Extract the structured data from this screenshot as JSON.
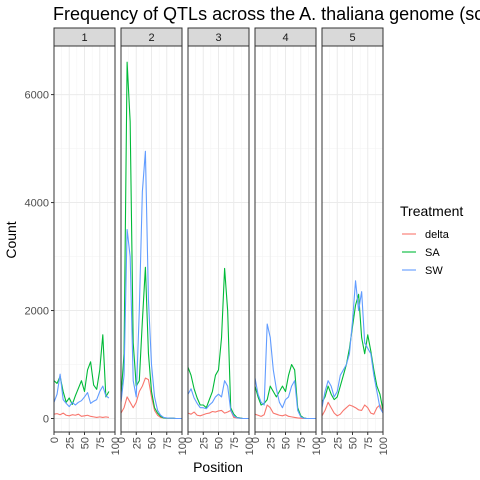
{
  "chart_data": {
    "type": "line",
    "title": "Frequency of QTLs across the A. thaliana genome (sc",
    "xlabel": "Position",
    "ylabel": "Count",
    "facets": [
      "1",
      "2",
      "3",
      "4",
      "5"
    ],
    "xlim": [
      0,
      100
    ],
    "ylim": [
      -250,
      6900
    ],
    "x_ticks": [
      0,
      25,
      50,
      75,
      100
    ],
    "y_ticks": [
      0,
      2000,
      4000,
      6000
    ],
    "y_tick_labels": [
      "0",
      "2000",
      "4000",
      "6000"
    ],
    "grid": true,
    "legend": {
      "title": "Treatment",
      "position": "right",
      "entries": [
        {
          "name": "delta",
          "color": "#F8766D"
        },
        {
          "name": "SA",
          "color": "#00BA38"
        },
        {
          "name": "SW",
          "color": "#619CFF"
        }
      ]
    },
    "panels": [
      {
        "facet": "1",
        "series": [
          {
            "name": "delta",
            "x": [
              0,
              5,
              10,
              15,
              20,
              25,
              30,
              35,
              40,
              45,
              50,
              55,
              60,
              65,
              70,
              75,
              80,
              85,
              90
            ],
            "y": [
              80,
              90,
              70,
              100,
              60,
              50,
              70,
              60,
              80,
              40,
              50,
              60,
              40,
              30,
              20,
              30,
              20,
              30,
              20
            ]
          },
          {
            "name": "SA",
            "x": [
              0,
              5,
              10,
              15,
              20,
              25,
              30,
              35,
              40,
              45,
              50,
              55,
              60,
              65,
              70,
              75,
              80,
              85,
              90
            ],
            "y": [
              700,
              650,
              780,
              500,
              300,
              380,
              260,
              420,
              560,
              700,
              500,
              900,
              1050,
              620,
              540,
              900,
              1550,
              400,
              500
            ]
          },
          {
            "name": "SW",
            "x": [
              0,
              5,
              10,
              15,
              20,
              25,
              30,
              35,
              40,
              45,
              50,
              55,
              60,
              65,
              70,
              75,
              80,
              85,
              90
            ],
            "y": [
              300,
              450,
              820,
              350,
              280,
              220,
              300,
              250,
              300,
              330,
              400,
              480,
              280,
              320,
              350,
              500,
              600,
              420,
              380
            ]
          }
        ]
      },
      {
        "facet": "2",
        "series": [
          {
            "name": "delta",
            "x": [
              0,
              5,
              10,
              15,
              20,
              25,
              30,
              35,
              40,
              45,
              50,
              55,
              60,
              65,
              70,
              75,
              80,
              85,
              90,
              95,
              100
            ],
            "y": [
              100,
              200,
              400,
              300,
              200,
              300,
              500,
              600,
              750,
              720,
              400,
              150,
              60,
              20,
              10,
              5,
              5,
              5,
              0,
              0,
              0
            ]
          },
          {
            "name": "SA",
            "x": [
              0,
              5,
              10,
              15,
              20,
              25,
              30,
              35,
              40,
              45,
              50,
              55,
              60,
              65,
              70,
              75,
              80,
              85,
              90,
              95,
              100
            ],
            "y": [
              400,
              1200,
              6600,
              5500,
              1400,
              600,
              700,
              1800,
              2800,
              1200,
              500,
              200,
              100,
              40,
              10,
              5,
              5,
              5,
              0,
              0,
              0
            ]
          },
          {
            "name": "SW",
            "x": [
              0,
              5,
              10,
              15,
              20,
              25,
              30,
              35,
              40,
              45,
              50,
              55,
              60,
              65,
              70,
              75,
              80,
              85,
              90,
              95,
              100
            ],
            "y": [
              300,
              800,
              3500,
              3000,
              700,
              400,
              2000,
              4200,
              4950,
              2200,
              1000,
              400,
              150,
              60,
              20,
              10,
              5,
              5,
              0,
              0,
              0
            ]
          }
        ]
      },
      {
        "facet": "3",
        "series": [
          {
            "name": "delta",
            "x": [
              0,
              5,
              10,
              15,
              20,
              25,
              30,
              35,
              40,
              45,
              50,
              55,
              60,
              65,
              70,
              75,
              80,
              85,
              90,
              95,
              100
            ],
            "y": [
              100,
              80,
              120,
              60,
              50,
              70,
              90,
              100,
              130,
              120,
              140,
              150,
              100,
              120,
              150,
              20,
              10,
              5,
              0,
              0,
              0
            ]
          },
          {
            "name": "SA",
            "x": [
              0,
              5,
              10,
              15,
              20,
              25,
              30,
              35,
              40,
              45,
              50,
              55,
              60,
              65,
              70,
              75,
              80,
              85,
              90,
              95,
              100
            ],
            "y": [
              950,
              800,
              550,
              380,
              250,
              250,
              200,
              350,
              500,
              800,
              900,
              1500,
              2780,
              2000,
              200,
              80,
              20,
              10,
              0,
              0,
              0
            ]
          },
          {
            "name": "SW",
            "x": [
              0,
              5,
              10,
              15,
              20,
              25,
              30,
              35,
              40,
              45,
              50,
              55,
              60,
              65,
              70,
              75,
              80,
              85,
              90,
              95,
              100
            ],
            "y": [
              450,
              550,
              380,
              280,
              200,
              200,
              180,
              250,
              300,
              400,
              450,
              400,
              700,
              600,
              150,
              50,
              15,
              5,
              0,
              0,
              0
            ]
          }
        ]
      },
      {
        "facet": "4",
        "series": [
          {
            "name": "delta",
            "x": [
              0,
              5,
              10,
              15,
              20,
              25,
              30,
              35,
              40,
              45,
              50,
              55,
              60,
              65,
              70,
              75,
              80,
              85,
              90,
              95,
              100
            ],
            "y": [
              80,
              60,
              40,
              70,
              250,
              200,
              100,
              80,
              60,
              50,
              70,
              40,
              30,
              20,
              10,
              5,
              0,
              0,
              0,
              0,
              0
            ]
          },
          {
            "name": "SA",
            "x": [
              0,
              5,
              10,
              15,
              20,
              25,
              30,
              35,
              40,
              45,
              50,
              55,
              60,
              65,
              70,
              75,
              80,
              85,
              90,
              95,
              100
            ],
            "y": [
              600,
              400,
              250,
              280,
              350,
              600,
              500,
              400,
              500,
              600,
              500,
              800,
              1000,
              900,
              200,
              50,
              10,
              0,
              0,
              0,
              0
            ]
          },
          {
            "name": "SW",
            "x": [
              0,
              5,
              10,
              15,
              20,
              25,
              30,
              35,
              40,
              45,
              50,
              55,
              60,
              65,
              70,
              75,
              80,
              85,
              90,
              95,
              100
            ],
            "y": [
              750,
              450,
              300,
              250,
              1750,
              1500,
              900,
              550,
              300,
              200,
              350,
              400,
              600,
              700,
              150,
              30,
              5,
              0,
              0,
              0,
              0
            ]
          }
        ]
      },
      {
        "facet": "5",
        "series": [
          {
            "name": "delta",
            "x": [
              0,
              5,
              10,
              15,
              20,
              25,
              30,
              35,
              40,
              45,
              50,
              55,
              60,
              65,
              70,
              75,
              80,
              85,
              90,
              95,
              100
            ],
            "y": [
              50,
              150,
              300,
              200,
              100,
              50,
              80,
              150,
              200,
              250,
              230,
              200,
              160,
              150,
              250,
              200,
              100,
              80,
              200,
              250,
              100
            ]
          },
          {
            "name": "SA",
            "x": [
              0,
              5,
              10,
              15,
              20,
              25,
              30,
              35,
              40,
              45,
              50,
              55,
              60,
              65,
              70,
              75,
              80,
              85,
              90,
              95,
              100
            ],
            "y": [
              300,
              400,
              600,
              450,
              350,
              400,
              600,
              800,
              1000,
              1300,
              1700,
              2100,
              2300,
              1500,
              1200,
              1550,
              1250,
              900,
              600,
              450,
              150
            ]
          },
          {
            "name": "SW",
            "x": [
              0,
              5,
              10,
              15,
              20,
              25,
              30,
              35,
              40,
              45,
              50,
              55,
              60,
              65,
              70,
              75,
              80,
              85,
              90,
              95,
              100
            ],
            "y": [
              200,
              500,
              700,
              600,
              400,
              500,
              800,
              900,
              1000,
              1200,
              1800,
              2550,
              2000,
              2350,
              1400,
              1300,
              1200,
              800,
              500,
              200,
              100
            ]
          }
        ]
      }
    ]
  }
}
